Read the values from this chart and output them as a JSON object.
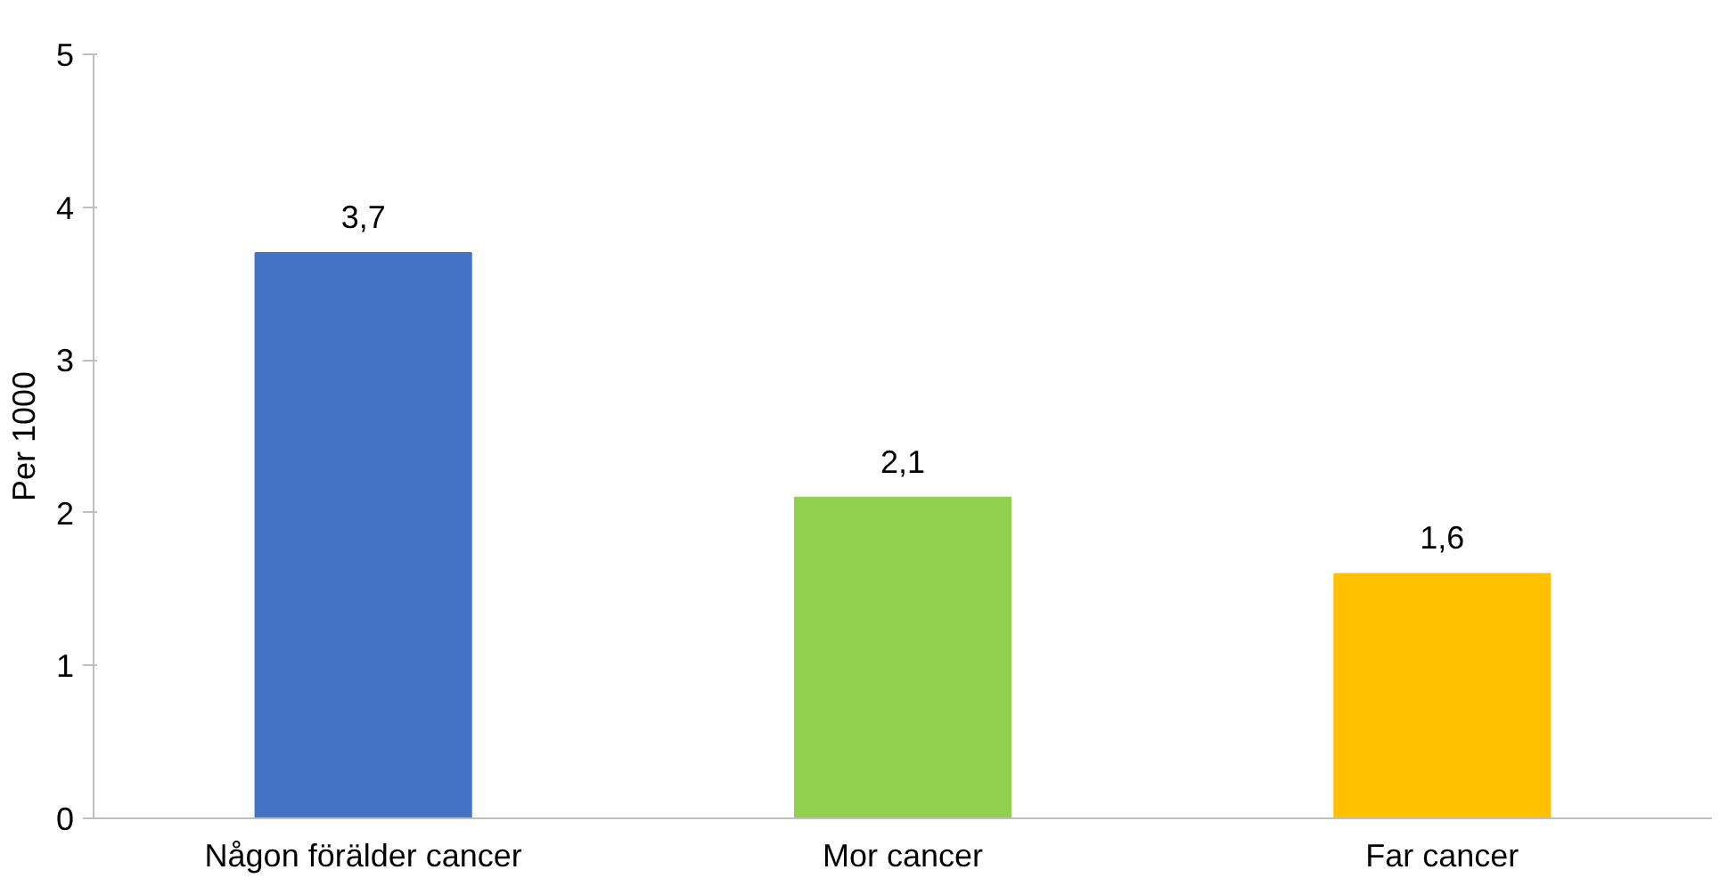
{
  "chart_data": {
    "type": "bar",
    "ylabel": "Per 1000",
    "categories": [
      "Någon förälder cancer",
      "Mor cancer",
      "Far cancer"
    ],
    "values": [
      3.7,
      2.1,
      1.6
    ],
    "colors": [
      "#4472c4",
      "#92d050",
      "#ffc000"
    ],
    "value_labels": [
      "3,7",
      "2,1",
      "1,6"
    ],
    "ylim": [
      0,
      5
    ],
    "yticks": [
      0,
      1,
      2,
      3,
      4,
      5
    ],
    "grid": false
  }
}
